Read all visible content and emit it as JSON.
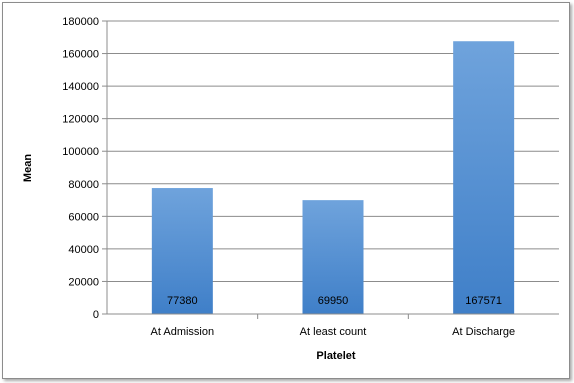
{
  "chart_data": {
    "type": "bar",
    "categories": [
      "At Admission",
      "At least count",
      "At Discharge"
    ],
    "values": [
      77380,
      69950,
      167571
    ],
    "data_labels": [
      "77380",
      "69950",
      "167571"
    ],
    "title": "",
    "xlabel": "Platelet",
    "ylabel": "Mean",
    "ylim": [
      0,
      180000
    ],
    "yticks": [
      0,
      20000,
      40000,
      60000,
      80000,
      100000,
      120000,
      140000,
      160000,
      180000
    ],
    "ytick_labels": [
      "0",
      "20000",
      "40000",
      "60000",
      "80000",
      "100000",
      "120000",
      "140000",
      "160000",
      "180000"
    ],
    "grid": true,
    "legend": "none",
    "colors": {
      "bar_top": "#6fa3dc",
      "bar_bottom": "#3f7fc8",
      "gridline": "#8c8c8c",
      "axis": "#8c8c8c"
    }
  }
}
